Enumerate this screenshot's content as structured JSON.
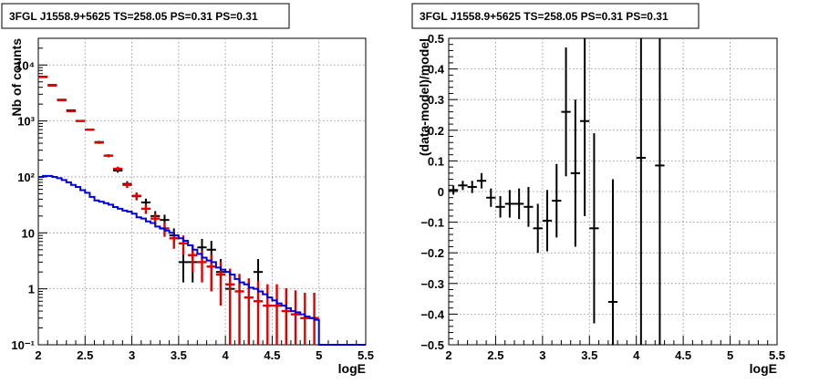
{
  "chart_data": [
    {
      "type": "scatter",
      "title": "3FGL J1558.9+5625 TS=258.05 PS=0.31 PS=0.31",
      "xlabel": "logE",
      "ylabel": "Nb of counts",
      "xlim": [
        2,
        5.5
      ],
      "ylim": [
        0.1,
        30000
      ],
      "yscale": "log",
      "grid": true,
      "x_ticks": [
        "2",
        "2.5",
        "3",
        "3.5",
        "4",
        "4.5",
        "5",
        "5.5"
      ],
      "y_ticks": [
        "10⁻¹",
        "1",
        "10",
        "10²",
        "10³",
        "10⁴"
      ],
      "colors": {
        "data": "#000000",
        "model_counts": "#e00000",
        "model_line": "#0000dd",
        "grid": "#888888"
      },
      "series": [
        {
          "role": "data",
          "x": [
            2.05,
            2.15,
            2.25,
            2.35,
            2.45,
            2.55,
            2.65,
            2.75,
            2.85,
            2.95,
            3.05,
            3.15,
            3.25,
            3.35,
            3.45,
            3.55,
            3.65,
            3.75,
            3.85,
            3.95,
            4.05,
            4.35
          ],
          "y": [
            6200,
            4400,
            2400,
            1550,
            1000,
            700,
            420,
            240,
            130,
            75,
            45,
            35,
            20,
            17,
            9,
            3,
            3,
            5.5,
            5,
            2,
            1,
            2
          ],
          "y_err": [
            80,
            66,
            49,
            39,
            32,
            26,
            20,
            15,
            11,
            8.7,
            6.7,
            5.9,
            4.5,
            4.1,
            3,
            1.7,
            1.7,
            2.3,
            2.2,
            1.4,
            1,
            1.4
          ]
        },
        {
          "role": "model_counts",
          "x": [
            2.05,
            2.15,
            2.25,
            2.35,
            2.45,
            2.55,
            2.65,
            2.75,
            2.85,
            2.95,
            3.05,
            3.15,
            3.25,
            3.35,
            3.45,
            3.55,
            3.65,
            3.75,
            3.85,
            3.95,
            4.05,
            4.15,
            4.25,
            4.35,
            4.45,
            4.55,
            4.65,
            4.75,
            4.85,
            4.95
          ],
          "y": [
            6100,
            4300,
            2350,
            1500,
            1000,
            700,
            410,
            240,
            140,
            72,
            46,
            27,
            18,
            12,
            8,
            6.5,
            4,
            3,
            2.5,
            1.8,
            1.2,
            0.9,
            0.7,
            0.6,
            0.5,
            0.5,
            0.4,
            0.35,
            0.3,
            0.3
          ],
          "y_err": [
            78,
            65,
            48,
            39,
            32,
            26,
            20,
            15,
            12,
            8.5,
            6.8,
            5.2,
            4.2,
            3.5,
            2.8,
            2.5,
            2,
            1.7,
            1.6,
            1.3,
            1.1,
            0.95,
            0.84,
            0.77,
            0.71,
            0.71,
            0.63,
            0.59,
            0.55,
            0.55
          ]
        },
        {
          "role": "model_line",
          "x": [
            2.0,
            2.05,
            2.1,
            2.15,
            2.2,
            2.25,
            2.3,
            2.35,
            2.4,
            2.45,
            2.5,
            2.55,
            2.6,
            2.65,
            2.7,
            2.75,
            2.8,
            2.85,
            2.9,
            2.95,
            3.0,
            3.05,
            3.1,
            3.15,
            3.2,
            3.25,
            3.3,
            3.35,
            3.4,
            3.45,
            3.5,
            3.55,
            3.6,
            3.65,
            3.7,
            3.75,
            3.8,
            3.85,
            3.9,
            3.95,
            4.0,
            4.05,
            4.1,
            4.15,
            4.2,
            4.25,
            4.3,
            4.35,
            4.4,
            4.45,
            4.5,
            4.55,
            4.6,
            4.65,
            4.7,
            4.75,
            4.8,
            4.85,
            4.9,
            4.95,
            5.0
          ],
          "y": [
            100,
            104,
            104,
            100,
            95,
            88,
            80,
            72,
            66,
            58,
            52,
            44,
            38,
            36,
            34,
            32,
            29,
            27,
            25,
            24,
            22,
            19,
            18,
            16,
            15,
            13,
            12,
            11,
            10,
            9,
            8,
            7.2,
            6,
            5,
            4.2,
            3.6,
            3.2,
            3,
            2.4,
            2.2,
            2,
            1.8,
            1.5,
            1.3,
            1.2,
            1.05,
            1,
            0.9,
            0.8,
            0.7,
            0.62,
            0.55,
            0.5,
            0.45,
            0.4,
            0.38,
            0.35,
            0.32,
            0.3,
            0.28,
            0.1
          ]
        }
      ]
    },
    {
      "type": "scatter",
      "title": "3FGL J1558.9+5625 TS=258.05 PS=0.31 PS=0.31",
      "xlabel": "logE",
      "ylabel": "(data-model)/model",
      "xlim": [
        2,
        5.5
      ],
      "ylim": [
        -0.5,
        0.5
      ],
      "grid": true,
      "x_ticks": [
        "2",
        "2.5",
        "3",
        "3.5",
        "4",
        "4.5",
        "5",
        "5.5"
      ],
      "y_ticks": [
        "−0.5",
        "−0.4",
        "−0.3",
        "−0.2",
        "−0.1",
        "0",
        "0.1",
        "0.2",
        "0.3",
        "0.4",
        "0.5"
      ],
      "colors": {
        "data": "#000000",
        "grid": "#888888"
      },
      "series": [
        {
          "role": "residuals",
          "x": [
            2.05,
            2.15,
            2.25,
            2.35,
            2.45,
            2.55,
            2.65,
            2.75,
            2.85,
            2.95,
            3.05,
            3.15,
            3.25,
            3.35,
            3.45,
            3.55,
            3.75,
            4.05,
            4.25
          ],
          "y": [
            0.005,
            0.02,
            0.015,
            0.035,
            -0.02,
            -0.05,
            -0.04,
            -0.04,
            -0.05,
            -0.12,
            -0.095,
            -0.03,
            0.26,
            0.06,
            0.23,
            -0.12,
            -0.36,
            0.11,
            0.085
          ],
          "y_err": [
            0.015,
            0.015,
            0.02,
            0.025,
            0.03,
            0.035,
            0.045,
            0.05,
            0.065,
            0.08,
            0.1,
            0.12,
            0.21,
            0.24,
            0.31,
            0.31,
            0.4,
            1.0,
            1.0
          ]
        }
      ]
    }
  ]
}
